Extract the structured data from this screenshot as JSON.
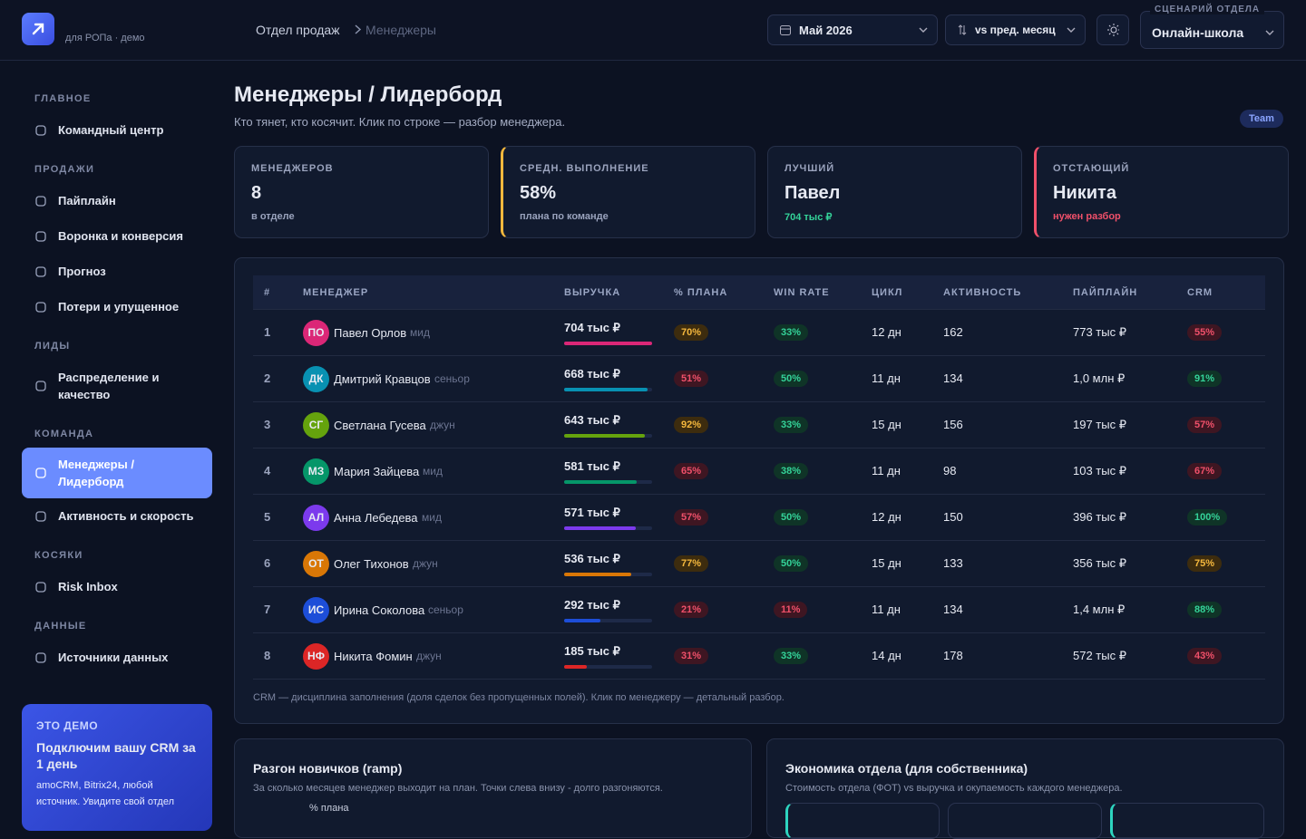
{
  "header": {
    "subtitle": "для РОПа · демо",
    "breadcrumb": [
      "Отдел продаж",
      "Менеджеры"
    ],
    "period": "Май 2026",
    "compare": "vs пред. месяц",
    "scenario_label": "СЦЕНАРИЙ ОТДЕЛА",
    "scenario": "Онлайн-школа"
  },
  "sidebar": {
    "sections": [
      {
        "title": "ГЛАВНОЕ",
        "items": [
          {
            "label": "Командный центр"
          }
        ]
      },
      {
        "title": "ПРОДАЖИ",
        "items": [
          {
            "label": "Пайплайн"
          },
          {
            "label": "Воронка и конверсия"
          },
          {
            "label": "Прогноз"
          },
          {
            "label": "Потери и упущенное"
          }
        ]
      },
      {
        "title": "ЛИДЫ",
        "items": [
          {
            "label": "Распределение и качество"
          }
        ]
      },
      {
        "title": "КОМАНДА",
        "items": [
          {
            "label": "Менеджеры / Лидерборд",
            "active": true
          },
          {
            "label": "Активность и скорость"
          }
        ]
      },
      {
        "title": "КОСЯКИ",
        "items": [
          {
            "label": "Risk Inbox"
          }
        ]
      },
      {
        "title": "ДАННЫЕ",
        "items": [
          {
            "label": "Источники данных"
          }
        ]
      }
    ],
    "promo": {
      "kicker": "ЭТО ДЕМО",
      "title": "Подключим вашу CRM за 1 день",
      "text": "amoCRM, Bitrix24, любой источник. Увидите свой отдел"
    }
  },
  "page": {
    "title": "Менеджеры / Лидерборд",
    "subtitle": "Кто тянет, кто косячит. Клик по строке — разбор менеджера.",
    "badge": "Team"
  },
  "kpis": [
    {
      "label": "МЕНЕДЖЕРОВ",
      "value": "8",
      "note": "в отделе"
    },
    {
      "label": "СРЕДН. ВЫПОЛНЕНИЕ",
      "value": "58%",
      "note": "плана по команде"
    },
    {
      "label": "ЛУЧШИЙ",
      "value": "Павел",
      "note": "704 тыс ₽"
    },
    {
      "label": "ОТСТАЮЩИЙ",
      "value": "Никита",
      "note": "нужен разбор"
    }
  ],
  "table": {
    "columns": [
      "#",
      "МЕНЕДЖЕР",
      "ВЫРУЧКА",
      "% ПЛАНА",
      "WIN RATE",
      "ЦИКЛ",
      "АКТИВНОСТЬ",
      "ПАЙПЛАЙН",
      "CRM"
    ],
    "rows": [
      {
        "rank": "1",
        "initials": "ПО",
        "name": "Павел Орлов",
        "level": "мид",
        "color": "#db2777",
        "revenue": {
          "value": 704,
          "label": "704 тыс ₽"
        },
        "plan": "70%",
        "plan_tone": "amber",
        "win": "33%",
        "win_tone": "green",
        "cycle": "12 дн",
        "activity": "162",
        "pipeline": "773 тыс ₽",
        "crm": "55%",
        "crm_tone": "red"
      },
      {
        "rank": "2",
        "initials": "ДК",
        "name": "Дмитрий Кравцов",
        "level": "сеньор",
        "color": "#0891b2",
        "revenue": {
          "value": 668,
          "label": "668 тыс ₽"
        },
        "plan": "51%",
        "plan_tone": "red",
        "win": "50%",
        "win_tone": "green",
        "cycle": "11 дн",
        "activity": "134",
        "pipeline": "1,0 млн ₽",
        "crm": "91%",
        "crm_tone": "green"
      },
      {
        "rank": "3",
        "initials": "СГ",
        "name": "Светлана Гусева",
        "level": "джун",
        "color": "#65a30d",
        "revenue": {
          "value": 643,
          "label": "643 тыс ₽"
        },
        "plan": "92%",
        "plan_tone": "amber",
        "win": "33%",
        "win_tone": "green",
        "cycle": "15 дн",
        "activity": "156",
        "pipeline": "197 тыс ₽",
        "crm": "57%",
        "crm_tone": "red"
      },
      {
        "rank": "4",
        "initials": "МЗ",
        "name": "Мария Зайцева",
        "level": "мид",
        "color": "#059669",
        "revenue": {
          "value": 581,
          "label": "581 тыс ₽"
        },
        "plan": "65%",
        "plan_tone": "red",
        "win": "38%",
        "win_tone": "green",
        "cycle": "11 дн",
        "activity": "98",
        "pipeline": "103 тыс ₽",
        "crm": "67%",
        "crm_tone": "red"
      },
      {
        "rank": "5",
        "initials": "АЛ",
        "name": "Анна Лебедева",
        "level": "мид",
        "color": "#7c3aed",
        "revenue": {
          "value": 571,
          "label": "571 тыс ₽"
        },
        "plan": "57%",
        "plan_tone": "red",
        "win": "50%",
        "win_tone": "green",
        "cycle": "12 дн",
        "activity": "150",
        "pipeline": "396 тыс ₽",
        "crm": "100%",
        "crm_tone": "green"
      },
      {
        "rank": "6",
        "initials": "ОТ",
        "name": "Олег Тихонов",
        "level": "джун",
        "color": "#d97706",
        "revenue": {
          "value": 536,
          "label": "536 тыс ₽"
        },
        "plan": "77%",
        "plan_tone": "amber",
        "win": "50%",
        "win_tone": "green",
        "cycle": "15 дн",
        "activity": "133",
        "pipeline": "356 тыс ₽",
        "crm": "75%",
        "crm_tone": "amber"
      },
      {
        "rank": "7",
        "initials": "ИС",
        "name": "Ирина Соколова",
        "level": "сеньор",
        "color": "#1d4ed8",
        "revenue": {
          "value": 292,
          "label": "292 тыс ₽"
        },
        "plan": "21%",
        "plan_tone": "red",
        "win": "11%",
        "win_tone": "red",
        "cycle": "11 дн",
        "activity": "134",
        "pipeline": "1,4 млн ₽",
        "crm": "88%",
        "crm_tone": "green"
      },
      {
        "rank": "8",
        "initials": "НФ",
        "name": "Никита Фомин",
        "level": "джун",
        "color": "#dc2626",
        "revenue": {
          "value": 185,
          "label": "185 тыс ₽"
        },
        "plan": "31%",
        "plan_tone": "red",
        "win": "33%",
        "win_tone": "green",
        "cycle": "14 дн",
        "activity": "178",
        "pipeline": "572 тыс ₽",
        "crm": "43%",
        "crm_tone": "red"
      }
    ],
    "footnote": "CRM — дисциплина заполнения (доля сделок без пропущенных полей). Клик по менеджеру — детальный разбор."
  },
  "panels": [
    {
      "title": "Разгон новичков (ramp)",
      "subtitle": "За сколько месяцев менеджер выходит на план. Точки слева внизу - долго разгоняются.",
      "axis_label": "% плана"
    },
    {
      "title": "Экономика отдела (для собственника)",
      "subtitle": "Стоимость отдела (ФОТ) vs выручка и окупаемость каждого менеджера."
    }
  ]
}
